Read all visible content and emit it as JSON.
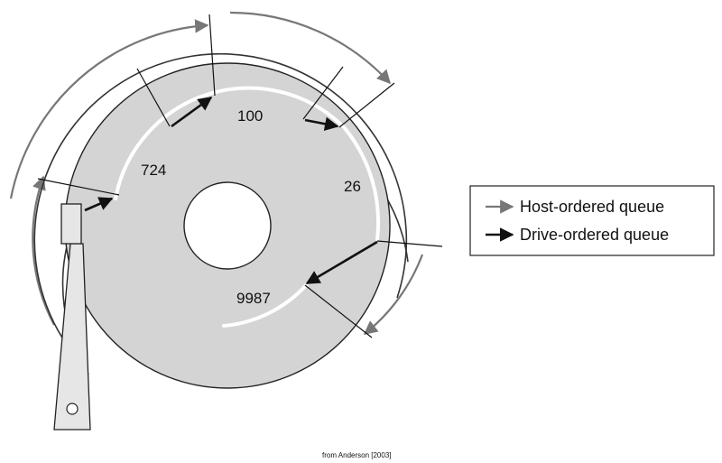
{
  "diagram": {
    "sectors": [
      {
        "id": "100",
        "label": "100"
      },
      {
        "id": "724",
        "label": "724"
      },
      {
        "id": "26",
        "label": "26"
      },
      {
        "id": "9987",
        "label": "9987"
      }
    ],
    "legend": {
      "host_ordered": {
        "label": "Host-ordered queue",
        "color": "#777777"
      },
      "drive_ordered": {
        "label": "Drive-ordered queue",
        "color": "#111111"
      }
    },
    "credit": "from Anderson [2003]",
    "colors": {
      "platter": "#d4d4d4",
      "outline": "#222222",
      "track": "#ffffff",
      "host_path": "#777777",
      "drive_path": "#111111"
    }
  }
}
